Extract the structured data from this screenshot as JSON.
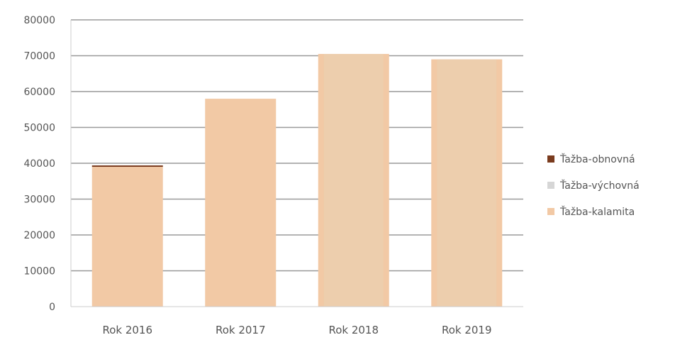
{
  "chart_data": {
    "type": "bar",
    "stacked": true,
    "categories": [
      "Rok 2016",
      "Rok 2017",
      "Rok 2018",
      "Rok 2019"
    ],
    "ylim": [
      0,
      80000
    ],
    "yticks": [
      0,
      10000,
      20000,
      30000,
      40000,
      50000,
      60000,
      70000,
      80000
    ],
    "grid": true,
    "legend_position": "right",
    "series": [
      {
        "name": "Ťažba-obnovná",
        "values": [
          400,
          0,
          0,
          0
        ],
        "color": "#7a3b1e"
      },
      {
        "name": "Ťažba-výchovná",
        "values": [
          0,
          0,
          0,
          0
        ],
        "color": "#d6d6d6"
      },
      {
        "name": "Ťažba-kalamita",
        "values": [
          39000,
          58000,
          70500,
          69000
        ],
        "color": "#f2c9a5"
      }
    ],
    "annotation": {
      "category": "Rok 2018",
      "text_color": "#e9d2b4"
    }
  }
}
